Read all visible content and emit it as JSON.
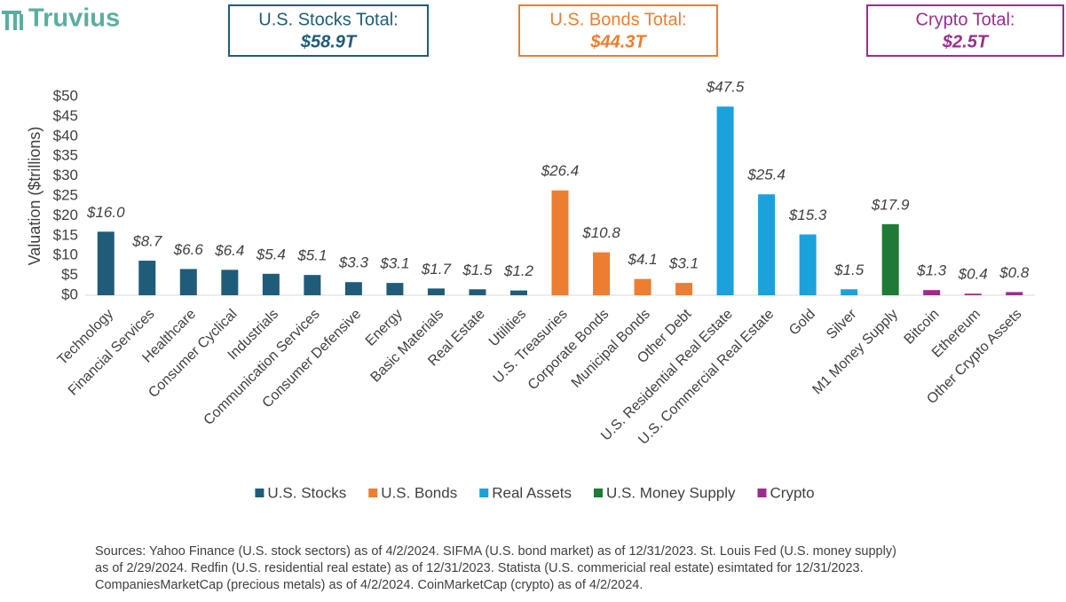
{
  "brand": "Truvius",
  "totals": [
    {
      "label": "U.S. Stocks Total:",
      "value": "$58.9T",
      "color": "#1f5c7a"
    },
    {
      "label": "U.S. Bonds Total:",
      "value": "$44.3T",
      "color": "#ed7d31"
    },
    {
      "label": "Crypto Total:",
      "value": "$2.5T",
      "color": "#9b2d8f"
    }
  ],
  "sources": [
    "Sources: Yahoo Finance (U.S. stock sectors) as of 4/2/2024. SIFMA (U.S. bond market) as of 12/31/2023. St. Louis Fed (U.S. money supply)",
    "as of 2/29/2024. Redfin (U.S. residential real estate) as of 12/31/2023. Statista (U.S. commericial real estate) esimtated  for 12/31/2023.",
    "CompaniesMarketCap  (precious metals) as of 4/2/2024. CoinMarketCap  (crypto) as of 4/2/2024."
  ],
  "chart_data": {
    "type": "bar",
    "y_label": "Valuation ($trillions)",
    "categories": [
      "Technology",
      "Financial Services",
      "Healthcare",
      "Consumer Cyclical",
      "Industrials",
      "Communication Services",
      "Consumer Defensive",
      "Energy",
      "Basic Materials",
      "Real Estate",
      "Utilities",
      "U.S. Treasuries",
      "Corporate Bonds",
      "Municipal Bonds",
      "Other Debt",
      "U.S. Residential Real Estate",
      "U.S. Commercial Real Estate",
      "Gold",
      "Silver",
      "M1 Money Supply",
      "Bitcoin",
      "Ethereum",
      "Other Crypto Assets"
    ],
    "series": [
      {
        "name": "U.S. Stocks",
        "color": "#1f5c7a",
        "values": [
          16.0,
          8.7,
          6.6,
          6.4,
          5.4,
          5.1,
          3.3,
          3.1,
          1.7,
          1.5,
          1.2,
          null,
          null,
          null,
          null,
          null,
          null,
          null,
          null,
          null,
          null,
          null,
          null
        ],
        "value_labels": [
          "$16.0",
          "$8.7",
          "$6.6",
          "$6.4",
          "$5.4",
          "$5.1",
          "$3.3",
          "$3.1",
          "$1.7",
          "$1.5",
          "$1.2",
          null,
          null,
          null,
          null,
          null,
          null,
          null,
          null,
          null,
          null,
          null,
          null
        ]
      },
      {
        "name": "U.S. Bonds",
        "color": "#ed7d31",
        "values": [
          null,
          null,
          null,
          null,
          null,
          null,
          null,
          null,
          null,
          null,
          null,
          26.4,
          10.8,
          4.1,
          3.1,
          null,
          null,
          null,
          null,
          null,
          null,
          null,
          null
        ],
        "value_labels": [
          null,
          null,
          null,
          null,
          null,
          null,
          null,
          null,
          null,
          null,
          null,
          "$26.4",
          "$10.8",
          "$4.1",
          "$3.1",
          null,
          null,
          null,
          null,
          null,
          null,
          null,
          null
        ]
      },
      {
        "name": "Real Assets",
        "color": "#1ba1dc",
        "values": [
          null,
          null,
          null,
          null,
          null,
          null,
          null,
          null,
          null,
          null,
          null,
          null,
          null,
          null,
          null,
          47.5,
          25.4,
          15.3,
          1.5,
          null,
          null,
          null,
          null
        ],
        "value_labels": [
          null,
          null,
          null,
          null,
          null,
          null,
          null,
          null,
          null,
          null,
          null,
          null,
          null,
          null,
          null,
          "$47.5",
          "$25.4",
          "$15.3",
          "$1.5",
          null,
          null,
          null,
          null
        ]
      },
      {
        "name": "U.S. Money Supply",
        "color": "#1e7a35",
        "values": [
          null,
          null,
          null,
          null,
          null,
          null,
          null,
          null,
          null,
          null,
          null,
          null,
          null,
          null,
          null,
          null,
          null,
          null,
          null,
          17.9,
          null,
          null,
          null
        ],
        "value_labels": [
          null,
          null,
          null,
          null,
          null,
          null,
          null,
          null,
          null,
          null,
          null,
          null,
          null,
          null,
          null,
          null,
          null,
          null,
          null,
          "$17.9",
          null,
          null,
          null
        ]
      },
      {
        "name": "Crypto",
        "color": "#9b2d8f",
        "values": [
          null,
          null,
          null,
          null,
          null,
          null,
          null,
          null,
          null,
          null,
          null,
          null,
          null,
          null,
          null,
          null,
          null,
          null,
          null,
          null,
          1.3,
          0.4,
          0.8
        ],
        "value_labels": [
          null,
          null,
          null,
          null,
          null,
          null,
          null,
          null,
          null,
          null,
          null,
          null,
          null,
          null,
          null,
          null,
          null,
          null,
          null,
          null,
          "$1.3",
          "$0.4",
          "$0.8"
        ]
      }
    ],
    "ylim": [
      0,
      50
    ],
    "yticks": [
      {
        "value": 0,
        "label": "$0"
      },
      {
        "value": 5,
        "label": "$5"
      },
      {
        "value": 10,
        "label": "$10"
      },
      {
        "value": 15,
        "label": "$15"
      },
      {
        "value": 20,
        "label": "$20"
      },
      {
        "value": 25,
        "label": "$25"
      },
      {
        "value": 30,
        "label": "$30"
      },
      {
        "value": 35,
        "label": "$35"
      },
      {
        "value": 40,
        "label": "$40"
      },
      {
        "value": 45,
        "label": "$45"
      },
      {
        "value": 50,
        "label": "$50"
      }
    ],
    "grid": false,
    "legend": "bottom"
  }
}
